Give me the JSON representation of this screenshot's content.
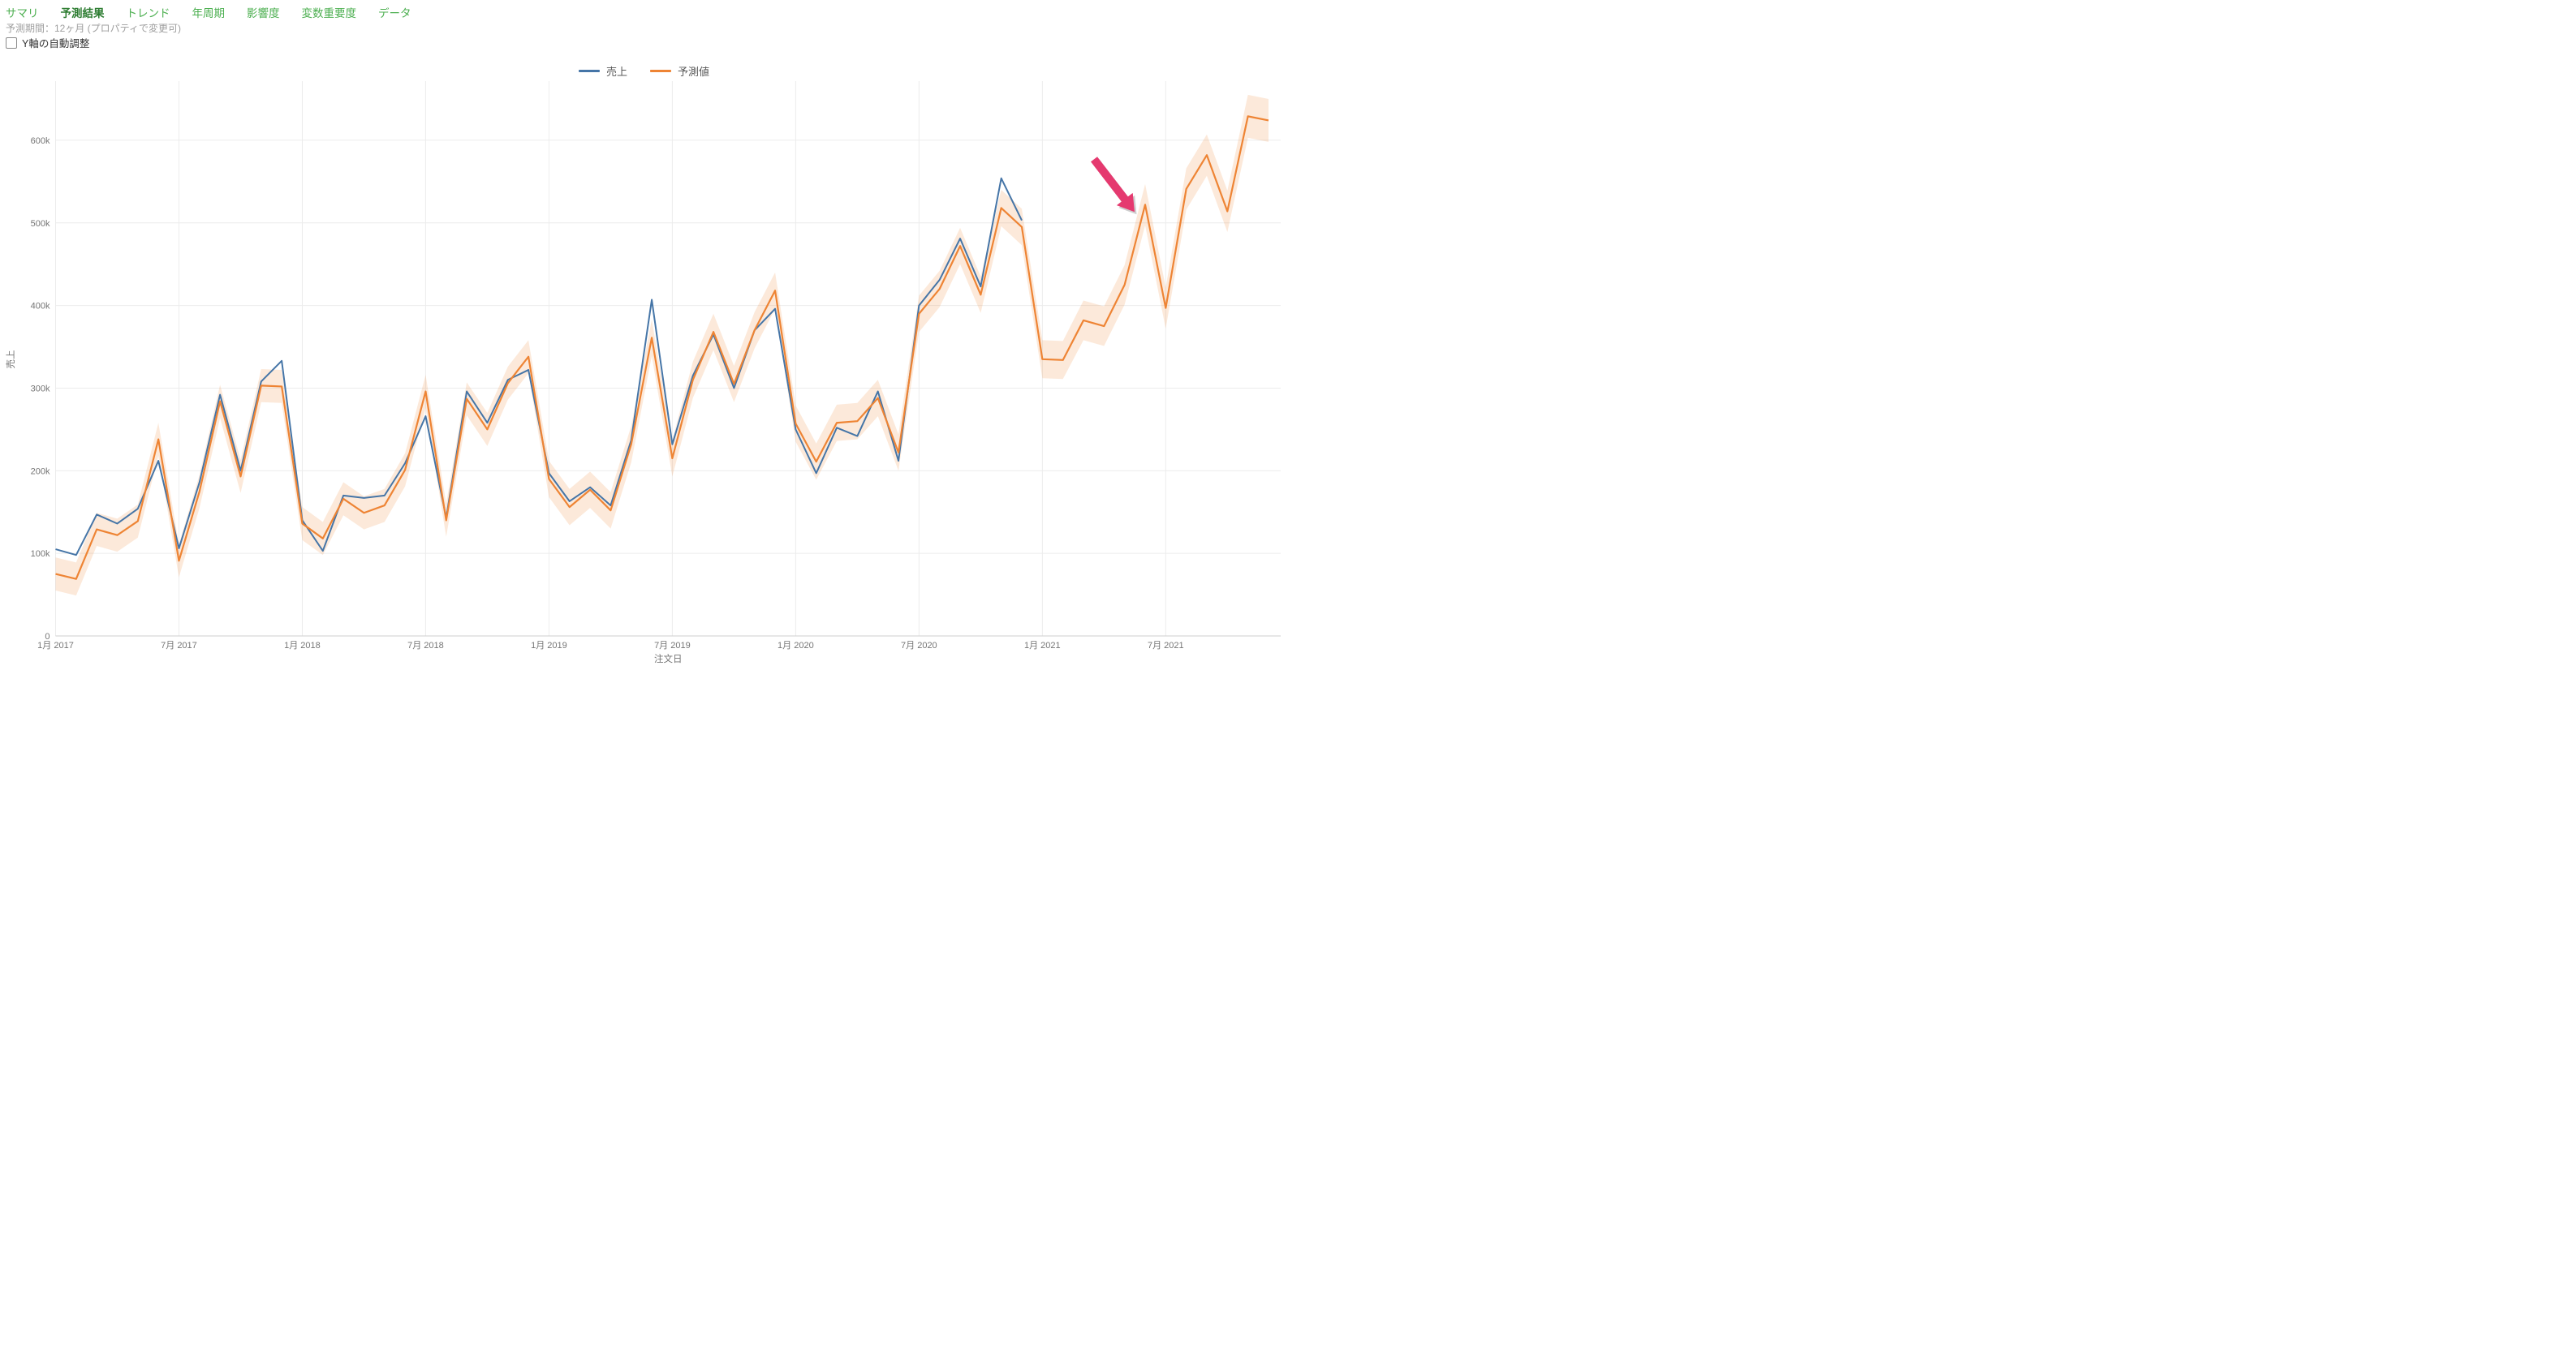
{
  "tabs": {
    "items": [
      "サマリ",
      "予測結果",
      "トレンド",
      "年周期",
      "影響度",
      "変数重要度",
      "データ"
    ],
    "active_index": 1
  },
  "subtitle": "予測期間：12ヶ月 (プロパティで変更可)",
  "y_axis_toggle": {
    "label": "Y軸の自動調整",
    "checked": false
  },
  "legend": {
    "items": [
      {
        "label": "売上",
        "color": "#4575A7"
      },
      {
        "label": "予測値",
        "color": "#EE8434"
      }
    ]
  },
  "chart_data": {
    "type": "line",
    "title": "",
    "xlabel": "注文日",
    "ylabel": "売上",
    "grid": true,
    "legend_position": "top-center",
    "ylim": [
      0,
      640000
    ],
    "y_tick_values": [
      0,
      100000,
      200000,
      300000,
      400000,
      500000,
      600000
    ],
    "y_tick_labels": [
      "0",
      "100k",
      "200k",
      "300k",
      "400k",
      "500k",
      "600k"
    ],
    "x_tick_every_months": 6,
    "x_tick_labels": [
      "1月 2017",
      "7月 2017",
      "1月 2018",
      "7月 2018",
      "1月 2019",
      "7月 2019",
      "1月 2020",
      "7月 2020",
      "1月 2021",
      "7月 2021"
    ],
    "months": [
      "2017-01",
      "2017-02",
      "2017-03",
      "2017-04",
      "2017-05",
      "2017-06",
      "2017-07",
      "2017-08",
      "2017-09",
      "2017-10",
      "2017-11",
      "2017-12",
      "2018-01",
      "2018-02",
      "2018-03",
      "2018-04",
      "2018-05",
      "2018-06",
      "2018-07",
      "2018-08",
      "2018-09",
      "2018-10",
      "2018-11",
      "2018-12",
      "2019-01",
      "2019-02",
      "2019-03",
      "2019-04",
      "2019-05",
      "2019-06",
      "2019-07",
      "2019-08",
      "2019-09",
      "2019-10",
      "2019-11",
      "2019-12",
      "2020-01",
      "2020-02",
      "2020-03",
      "2020-04",
      "2020-05",
      "2020-06",
      "2020-07",
      "2020-08",
      "2020-09",
      "2020-10",
      "2020-11",
      "2020-12",
      "2021-01",
      "2021-02",
      "2021-03",
      "2021-04",
      "2021-05",
      "2021-06",
      "2021-07",
      "2021-08",
      "2021-09",
      "2021-10",
      "2021-11",
      "2021-12"
    ],
    "forecast_start_month": "2021-01",
    "series": [
      {
        "name": "売上",
        "role": "actual",
        "color": "#4575A7",
        "values": [
          105000,
          98000,
          147000,
          136000,
          154000,
          212000,
          106000,
          186000,
          292000,
          200000,
          308000,
          333000,
          140000,
          103000,
          170000,
          167000,
          170000,
          209000,
          266000,
          143000,
          296000,
          258000,
          310000,
          322000,
          197000,
          163000,
          180000,
          158000,
          237000,
          407000,
          232000,
          315000,
          365000,
          300000,
          370000,
          396000,
          250000,
          197000,
          252000,
          242000,
          296000,
          212000,
          400000,
          431000,
          481000,
          423000,
          554000,
          503000
        ]
      },
      {
        "name": "予測値",
        "role": "forecast",
        "color": "#EE8434",
        "band_color": "rgba(238,132,52,0.18)",
        "values": [
          75000,
          69000,
          129000,
          122000,
          139000,
          238000,
          91000,
          175000,
          284000,
          193000,
          303000,
          302000,
          136000,
          118000,
          166000,
          149000,
          158000,
          201000,
          296000,
          140000,
          287000,
          250000,
          306000,
          338000,
          190000,
          156000,
          177000,
          152000,
          232000,
          361000,
          215000,
          310000,
          368000,
          305000,
          370000,
          418000,
          257000,
          211000,
          258000,
          260000,
          288000,
          222000,
          390000,
          420000,
          472000,
          413000,
          518000,
          495000,
          335000,
          334000,
          382000,
          375000,
          425000,
          522000,
          397000,
          541000,
          582000,
          514000,
          629000,
          624000
        ],
        "band_halfwidth": [
          20000,
          20000,
          20000,
          20000,
          20000,
          20000,
          20000,
          20000,
          20000,
          20000,
          20000,
          20000,
          20000,
          20000,
          20000,
          20000,
          20000,
          20000,
          20000,
          20000,
          20000,
          20000,
          20000,
          20000,
          22000,
          22000,
          22000,
          22000,
          22000,
          22000,
          22000,
          22000,
          22000,
          22000,
          22000,
          22000,
          22000,
          22000,
          22000,
          22000,
          22000,
          22000,
          22000,
          22000,
          22000,
          22000,
          22000,
          22000,
          23000,
          23000,
          24000,
          24000,
          24000,
          25000,
          25000,
          25000,
          25000,
          25000,
          26000,
          26000
        ]
      }
    ],
    "annotation_arrow": {
      "color": "#E5396F",
      "points_at_month": "2021-06"
    }
  }
}
